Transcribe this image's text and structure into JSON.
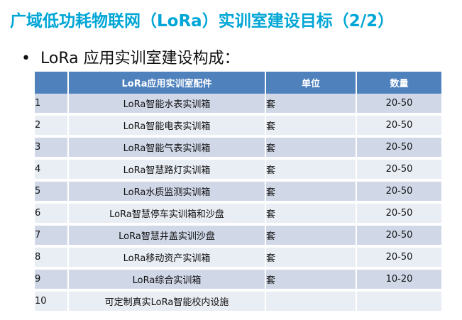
{
  "slide": {
    "title": "广域低功耗物联网（LoRa）实训室建设目标（2/2）",
    "bullet": "•",
    "subtitle": "LoRa 应用实训室建设构成："
  },
  "table": {
    "headers": [
      "",
      "LoRa应用实训室配件",
      "单位",
      "数量"
    ],
    "rows": [
      {
        "idx": "1",
        "name": "LoRa智能水表实训箱",
        "unit": "套",
        "qty": "20-50"
      },
      {
        "idx": "2",
        "name": "LoRa智能电表实训箱",
        "unit": "套",
        "qty": "20-50"
      },
      {
        "idx": "3",
        "name": "LoRa智能气表实训箱",
        "unit": "套",
        "qty": "20-50"
      },
      {
        "idx": "4",
        "name": "LoRa智慧路灯实训箱",
        "unit": "套",
        "qty": "20-50"
      },
      {
        "idx": "5",
        "name": "LoRa水质监测实训箱",
        "unit": "套",
        "qty": "20-50"
      },
      {
        "idx": "6",
        "name": "LoRa智慧停车实训箱和沙盘",
        "unit": "套",
        "qty": "20-50"
      },
      {
        "idx": "7",
        "name": "LoRa智慧井盖实训沙盘",
        "unit": "套",
        "qty": "20-50"
      },
      {
        "idx": "8",
        "name": "LoRa移动资产实训箱",
        "unit": "套",
        "qty": "20-50"
      },
      {
        "idx": "9",
        "name": "LoRa综合实训箱",
        "unit": "套",
        "qty": "10-20"
      },
      {
        "idx": "10",
        "name": "可定制真实LoRa智能校内设施",
        "unit": "",
        "qty": ""
      }
    ]
  }
}
